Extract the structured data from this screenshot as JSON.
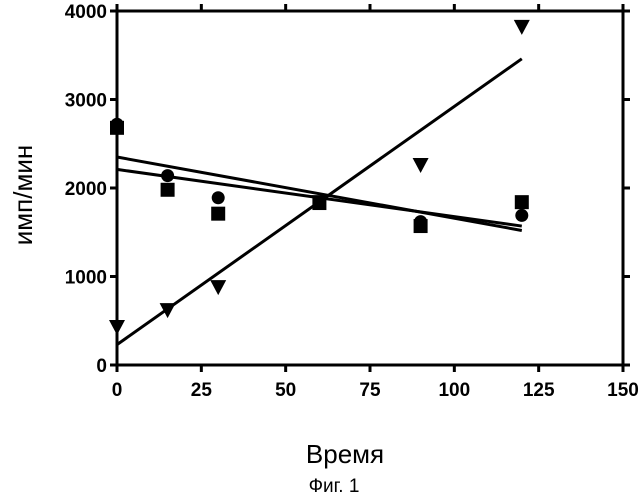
{
  "chart_data": {
    "type": "scatter",
    "xlabel": "Время",
    "ylabel": "имп/мин",
    "caption": "Фиг. 1",
    "xlim": [
      0,
      150
    ],
    "ylim": [
      0,
      4000
    ],
    "x_ticks": [
      0,
      25,
      50,
      75,
      100,
      125,
      150
    ],
    "y_ticks": [
      0,
      1000,
      2000,
      3000,
      4000
    ],
    "grid": false,
    "series": [
      {
        "marker": "circle",
        "points": [
          [
            0,
            2720
          ],
          [
            15,
            2140
          ],
          [
            30,
            1890
          ],
          [
            60,
            1840
          ],
          [
            90,
            1620
          ],
          [
            120,
            1690
          ]
        ],
        "fit": [
          [
            0,
            2350
          ],
          [
            120,
            1520
          ]
        ]
      },
      {
        "marker": "square",
        "points": [
          [
            0,
            2680
          ],
          [
            15,
            1980
          ],
          [
            30,
            1710
          ],
          [
            60,
            1830
          ],
          [
            90,
            1570
          ],
          [
            120,
            1840
          ]
        ],
        "fit": [
          [
            0,
            2210
          ],
          [
            120,
            1570
          ]
        ]
      },
      {
        "marker": "triangle-down",
        "points": [
          [
            0,
            430
          ],
          [
            15,
            620
          ],
          [
            30,
            880
          ],
          [
            60,
            1840
          ],
          [
            90,
            2260
          ],
          [
            120,
            3820
          ]
        ],
        "fit": [
          [
            0,
            230
          ],
          [
            120,
            3460
          ]
        ]
      }
    ]
  }
}
